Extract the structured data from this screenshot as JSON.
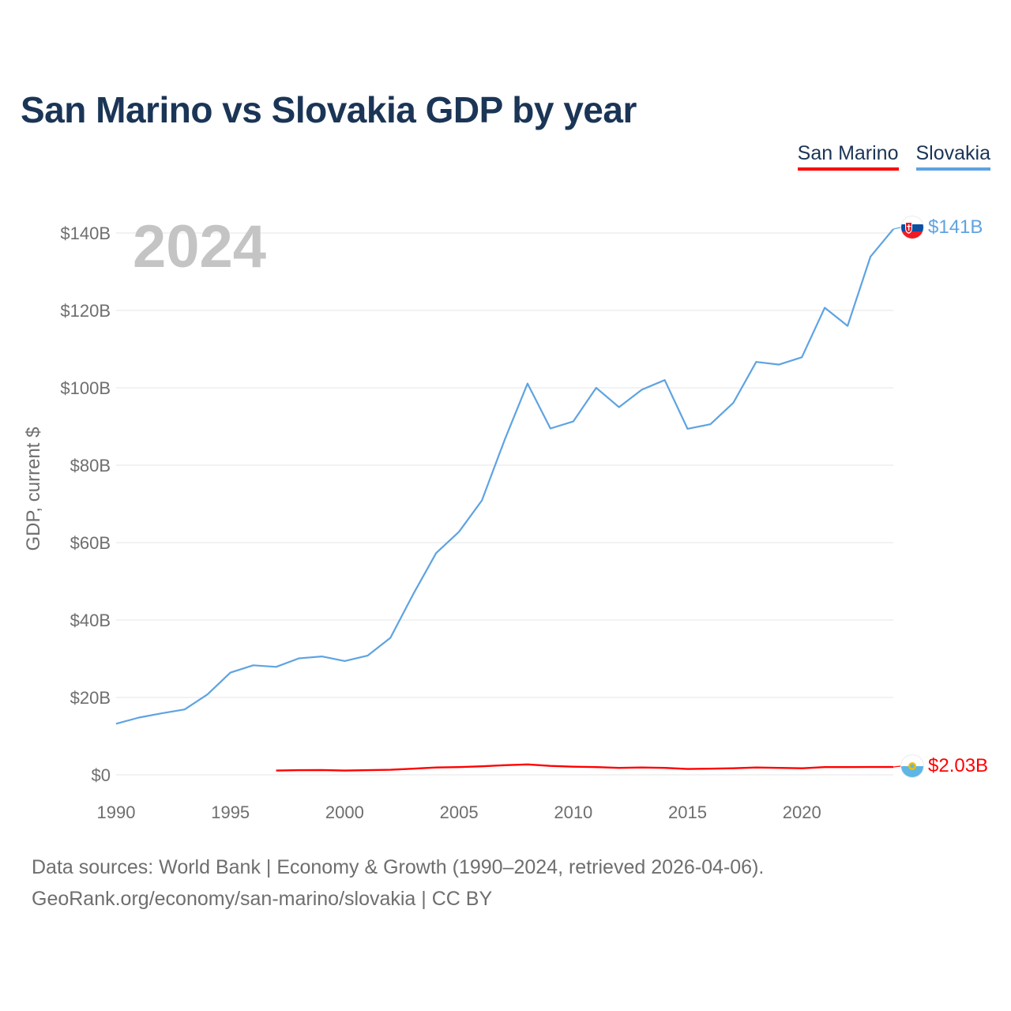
{
  "title": "San Marino vs Slovakia GDP by year",
  "legend": {
    "san_marino": "San Marino",
    "slovakia": "Slovakia"
  },
  "year_watermark": "2024",
  "source_line_1": "Data sources: World Bank | Economy & Growth (1990–2024, retrieved 2026-04-06).",
  "source_line_2": "GeoRank.org/economy/san-marino/slovakia | CC BY",
  "colors": {
    "san_marino": "#ff0000",
    "slovakia": "#5ea3e2",
    "title": "#1b3556"
  },
  "chart_data": {
    "type": "line",
    "title": "San Marino vs Slovakia GDP by year",
    "xlabel": "",
    "ylabel": "GDP, current $",
    "xlim": [
      1990,
      2024
    ],
    "ylim": [
      0,
      140
    ],
    "x_ticks": [
      1990,
      1995,
      2000,
      2005,
      2010,
      2015,
      2020
    ],
    "x_tick_labels": [
      "1990",
      "1995",
      "2000",
      "2005",
      "2010",
      "2015",
      "2020"
    ],
    "y_ticks": [
      0,
      20,
      40,
      60,
      80,
      100,
      120,
      140
    ],
    "y_tick_labels": [
      "$0",
      "$20B",
      "$40B",
      "$60B",
      "$80B",
      "$100B",
      "$120B",
      "$140B"
    ],
    "grid": true,
    "legend_position": "top-right",
    "series": [
      {
        "name": "Slovakia",
        "color": "#5ea3e2",
        "end_label": "$141B",
        "end_icon": "slovakia-flag-icon",
        "x": [
          1990,
          1991,
          1992,
          1993,
          1994,
          1995,
          1996,
          1997,
          1998,
          1999,
          2000,
          2001,
          2002,
          2003,
          2004,
          2005,
          2006,
          2007,
          2008,
          2009,
          2010,
          2011,
          2012,
          2013,
          2014,
          2015,
          2016,
          2017,
          2018,
          2019,
          2020,
          2021,
          2022,
          2023,
          2024
        ],
        "values": [
          13.2,
          14.8,
          15.9,
          16.9,
          20.8,
          26.4,
          28.3,
          27.9,
          30.1,
          30.6,
          29.4,
          30.8,
          35.4,
          46.7,
          57.3,
          62.8,
          70.9,
          86.6,
          101.1,
          89.5,
          91.3,
          100.0,
          95.0,
          99.5,
          102.0,
          89.4,
          90.6,
          96.1,
          106.7,
          106.0,
          107.9,
          120.7,
          116.0,
          133.9,
          141.0
        ]
      },
      {
        "name": "San Marino",
        "color": "#ff0000",
        "end_label": "$2.03B",
        "end_icon": "san-marino-flag-icon",
        "x": [
          1997,
          1998,
          1999,
          2000,
          2001,
          2002,
          2003,
          2004,
          2005,
          2006,
          2007,
          2008,
          2009,
          2010,
          2011,
          2012,
          2013,
          2014,
          2015,
          2016,
          2017,
          2018,
          2019,
          2020,
          2021,
          2022,
          2023,
          2024
        ],
        "values": [
          1.1,
          1.2,
          1.25,
          1.1,
          1.2,
          1.3,
          1.6,
          1.9,
          2.0,
          2.2,
          2.5,
          2.7,
          2.3,
          2.1,
          2.0,
          1.8,
          1.9,
          1.8,
          1.5,
          1.6,
          1.7,
          1.9,
          1.8,
          1.7,
          2.0,
          2.0,
          2.03,
          2.03
        ]
      }
    ]
  }
}
